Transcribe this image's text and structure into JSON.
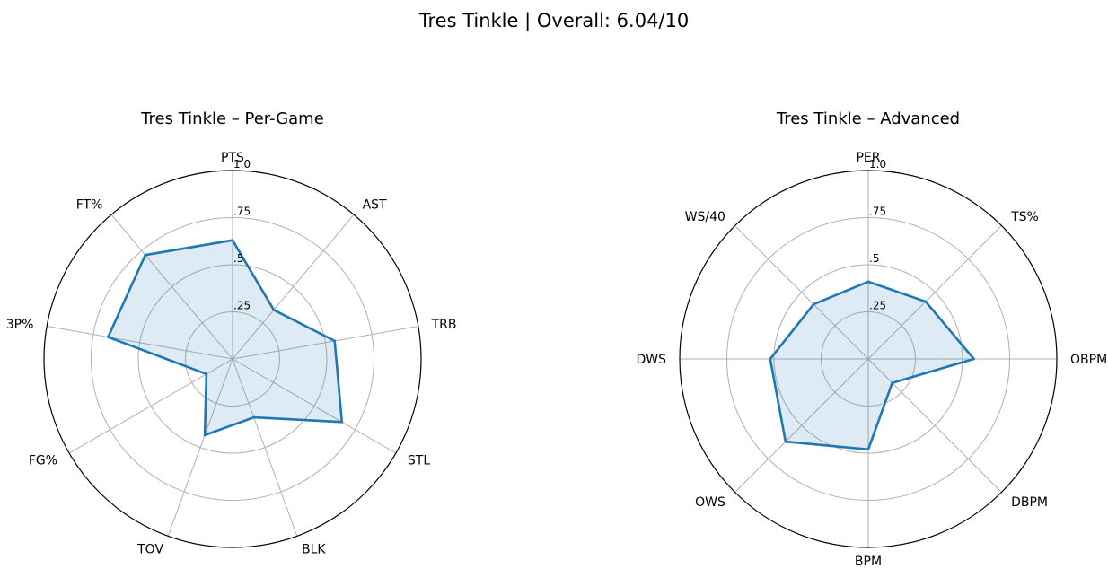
{
  "suptitle": "Tres Tinkle | Overall: 6.04/10",
  "chart_data": [
    {
      "type": "radar",
      "title": "Tres Tinkle – Per-Game",
      "categories": [
        "PTS",
        "AST",
        "TRB",
        "STL",
        "BLK",
        "TOV",
        "FG%",
        "3P%",
        "FT%"
      ],
      "series": [
        {
          "values": [
            0.63,
            0.34,
            0.55,
            0.67,
            0.33,
            0.43,
            0.16,
            0.67,
            0.72
          ]
        }
      ],
      "rlim": [
        0,
        1
      ],
      "rticks": [
        0.25,
        0.5,
        0.75,
        1.0
      ],
      "rtick_labels": [
        ".25",
        ".5",
        ".75",
        "1.0"
      ],
      "grid": true,
      "colors": {
        "line": "#1f77b4",
        "fill": "#1f77b4",
        "grid": "#b0b0b0",
        "frame": "#000000"
      }
    },
    {
      "type": "radar",
      "title": "Tres Tinkle – Advanced",
      "categories": [
        "PER",
        "TS%",
        "OBPM",
        "DBPM",
        "BPM",
        "OWS",
        "DWS",
        "WS/40"
      ],
      "series": [
        {
          "values": [
            0.41,
            0.43,
            0.56,
            0.18,
            0.48,
            0.62,
            0.52,
            0.41
          ]
        }
      ],
      "rlim": [
        0,
        1
      ],
      "rticks": [
        0.25,
        0.5,
        0.75,
        1.0
      ],
      "rtick_labels": [
        ".25",
        ".5",
        ".75",
        "1.0"
      ],
      "grid": true,
      "colors": {
        "line": "#1f77b4",
        "fill": "#1f77b4",
        "grid": "#b0b0b0",
        "frame": "#000000"
      }
    }
  ]
}
